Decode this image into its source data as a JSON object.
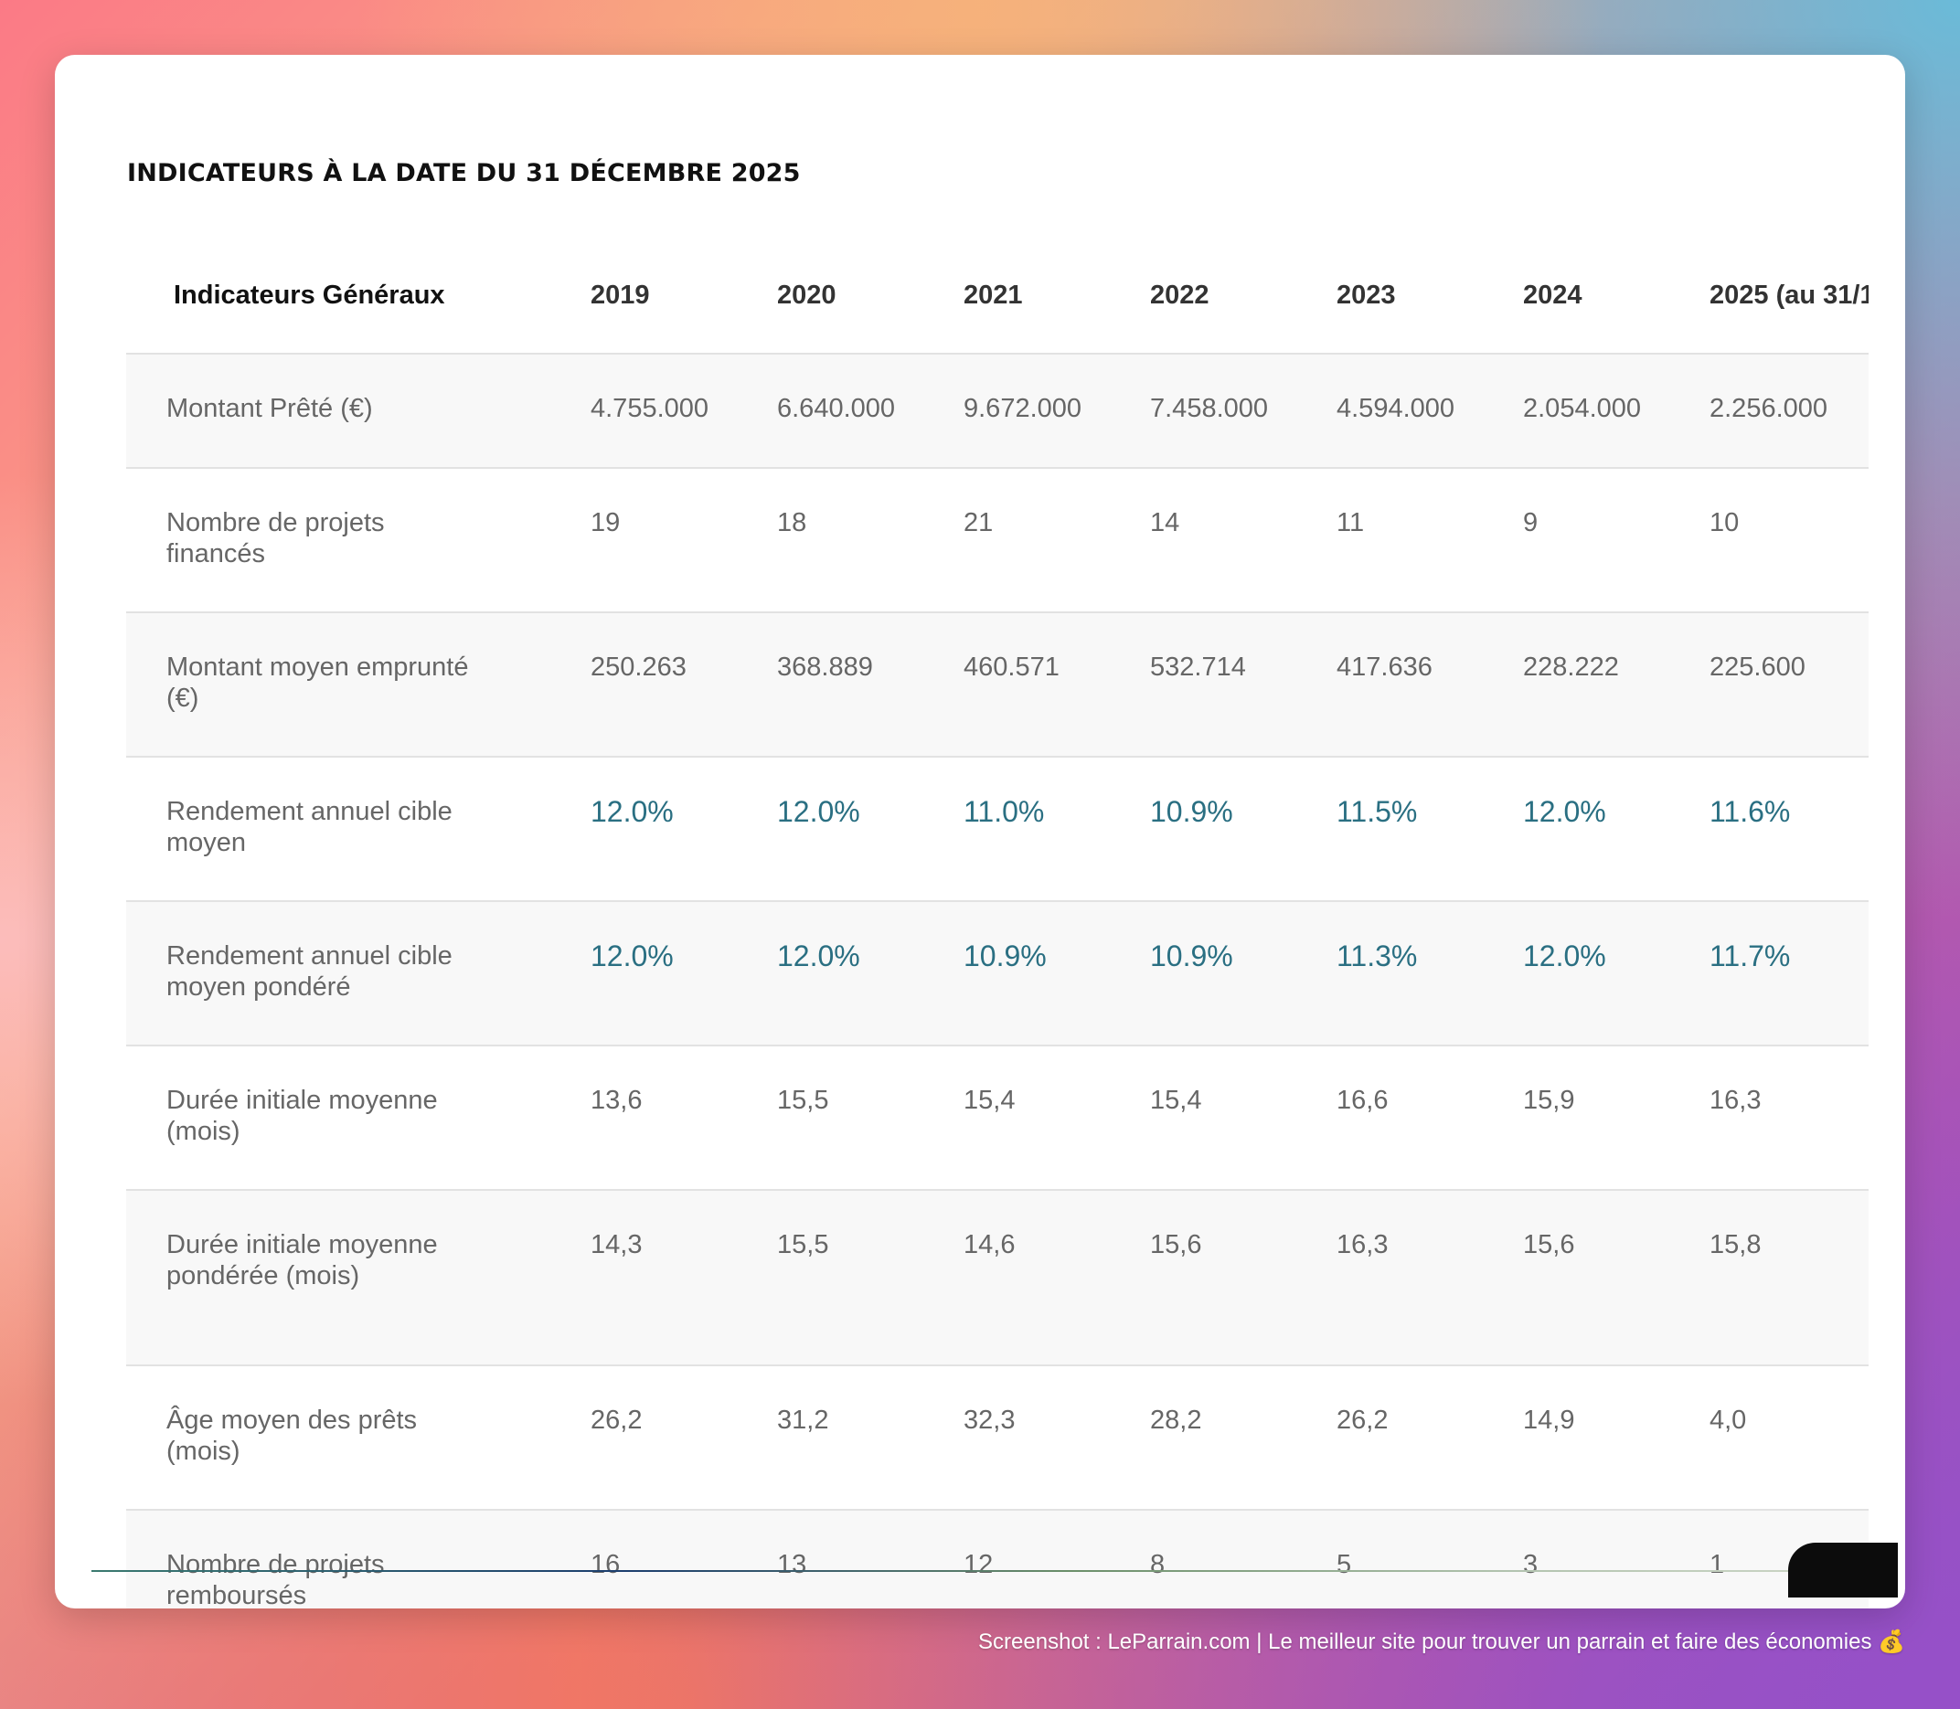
{
  "title": "INDICATEURS À LA DATE DU 31 DÉCEMBRE 2025",
  "table": {
    "headers": [
      "Indicateurs Généraux",
      "2019",
      "2020",
      "2021",
      "2022",
      "2023",
      "2024",
      "2025 (au 31/1"
    ],
    "rows": [
      {
        "label": "Montant Prêté (€)",
        "values": [
          "4.755.000",
          "6.640.000",
          "9.672.000",
          "7.458.000",
          "4.594.000",
          "2.054.000",
          "2.256.000"
        ]
      },
      {
        "label": "Nombre de projets financés",
        "values": [
          "19",
          "18",
          "21",
          "14",
          "11",
          "9",
          "10"
        ]
      },
      {
        "label": "Montant moyen emprunté (€)",
        "values": [
          "250.263",
          "368.889",
          "460.571",
          "532.714",
          "417.636",
          "228.222",
          "225.600"
        ]
      },
      {
        "label": "Rendement annuel cible moyen",
        "values": [
          "12.0%",
          "12.0%",
          "11.0%",
          "10.9%",
          "11.5%",
          "12.0%",
          "11.6%"
        ]
      },
      {
        "label": "Rendement annuel cible moyen pondéré",
        "values": [
          "12.0%",
          "12.0%",
          "10.9%",
          "10.9%",
          "11.3%",
          "12.0%",
          "11.7%"
        ]
      },
      {
        "label": "Durée initiale moyenne (mois)",
        "values": [
          "13,6",
          "15,5",
          "15,4",
          "15,4",
          "16,6",
          "15,9",
          "16,3"
        ]
      },
      {
        "label": "Durée initiale moyenne pondérée (mois)",
        "values": [
          "14,3",
          "15,5",
          "14,6",
          "15,6",
          "16,3",
          "15,6",
          "15,8"
        ]
      },
      {
        "label": "Âge moyen des prêts (mois)",
        "values": [
          "26,2",
          "31,2",
          "32,3",
          "28,2",
          "26,2",
          "14,9",
          "4,0"
        ]
      },
      {
        "label": "Nombre de projets remboursés",
        "values": [
          "16",
          "13",
          "12",
          "8",
          "5",
          "3",
          "1"
        ]
      }
    ]
  },
  "footer": "Screenshot : LeParrain.com | Le meilleur site pour trouver un parrain et faire des économies 💰",
  "colors": {
    "accent_percent": "#2a6f82",
    "row_alt": "#f8f8f8"
  }
}
